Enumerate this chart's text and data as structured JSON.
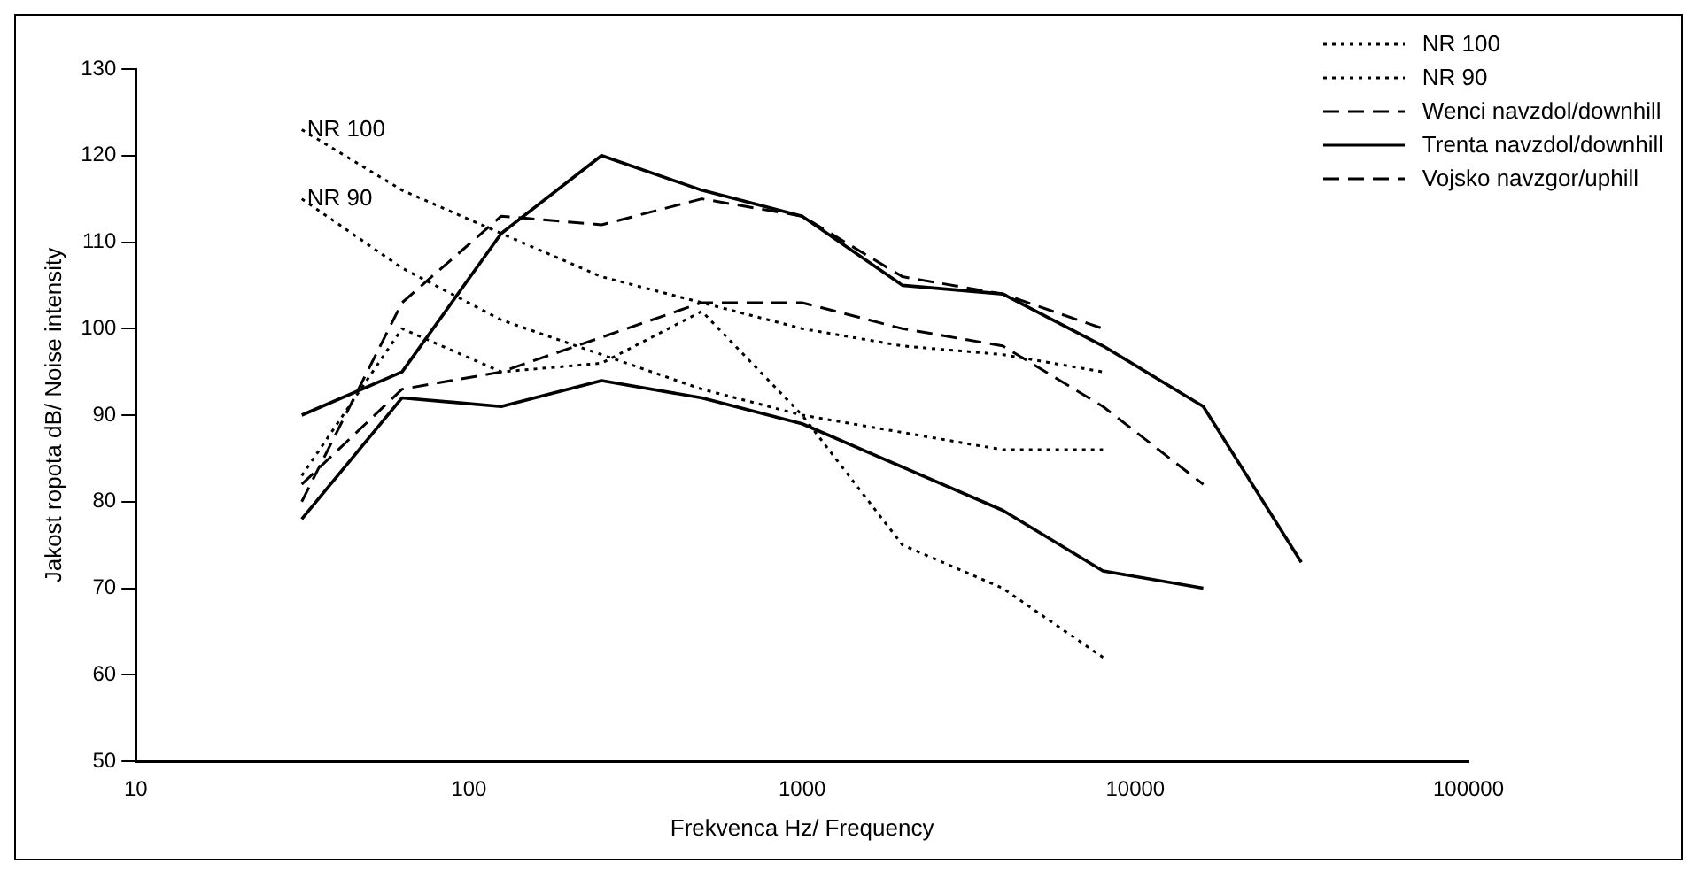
{
  "chart_data": {
    "type": "line",
    "xlabel": "Frekvenca Hz/ Frequency",
    "ylabel": "Jakost ropota dB/ Noise intensity",
    "log": "x",
    "xlim": [
      10,
      100000
    ],
    "xticks": [
      10,
      100,
      1000,
      10000,
      100000
    ],
    "ylim": [
      50,
      130
    ],
    "yticks": [
      50,
      60,
      70,
      80,
      90,
      100,
      110,
      120,
      130
    ],
    "grid": false,
    "legend": "top right",
    "marker": "none",
    "x": [
      31.5,
      63,
      125,
      250,
      500,
      1000,
      2000,
      4000,
      8000,
      16000,
      31500
    ],
    "series": [
      {
        "name": "NR 100",
        "color": "#000000",
        "line_style": "dotted",
        "values": [
          123,
          116,
          111,
          106,
          103,
          100,
          98,
          97,
          95,
          null,
          null
        ]
      },
      {
        "name": "NR 90",
        "color": "#000000",
        "line_style": "dotted",
        "values": [
          115,
          107,
          101,
          97,
          93,
          90,
          88,
          86,
          86,
          null,
          null
        ]
      },
      {
        "name": "Wenci navzdol/downhill",
        "color": "#000000",
        "line_style": "dashed",
        "values": [
          80,
          103,
          113,
          112,
          115,
          113,
          106,
          104,
          100,
          null,
          null
        ]
      },
      {
        "name": "Trenta navzdol/downhill",
        "color": "#000000",
        "line_style": "solid",
        "values": [
          78,
          92,
          91,
          94,
          92,
          89,
          84,
          79,
          72,
          70,
          null
        ]
      },
      {
        "name": "Vojsko navzgor/uphill",
        "color": "#000000",
        "line_style": "dashed",
        "values": [
          82,
          93,
          95,
          99,
          103,
          103,
          100,
          98,
          91,
          82,
          null
        ]
      },
      {
        "color": "#000000",
        "line_style": "solid",
        "values": [
          90,
          95,
          111,
          120,
          116,
          113,
          105,
          104,
          98,
          91,
          73
        ]
      },
      {
        "color": "#000000",
        "line_style": "dotted",
        "values": [
          83,
          100,
          95,
          96,
          102,
          90,
          75,
          70,
          62,
          null,
          null
        ]
      }
    ],
    "annotations": [
      {
        "text": "NR 100",
        "x": 31.5,
        "y": 123
      },
      {
        "text": "NR 90",
        "x": 31.5,
        "y": 115
      }
    ]
  }
}
